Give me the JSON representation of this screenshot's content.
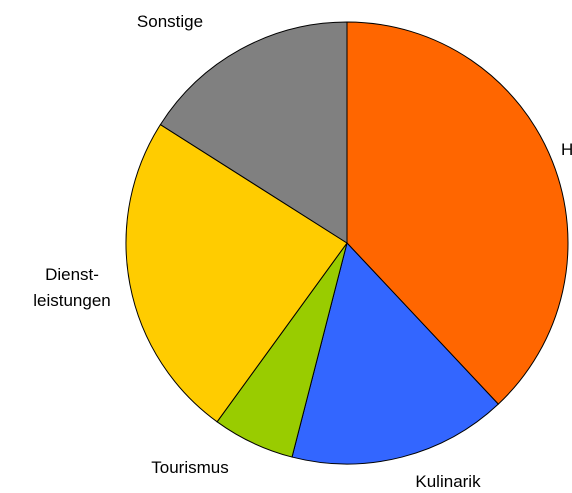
{
  "chart_data": {
    "type": "pie",
    "categories": [
      "H",
      "Kulinarik",
      "Tourismus",
      "Dienst-leistungen",
      "Sonstige"
    ],
    "values": [
      38,
      16,
      6,
      24,
      16
    ],
    "colors": [
      "#ff6600",
      "#3366ff",
      "#99cc00",
      "#ffcc00",
      "#808080"
    ]
  }
}
